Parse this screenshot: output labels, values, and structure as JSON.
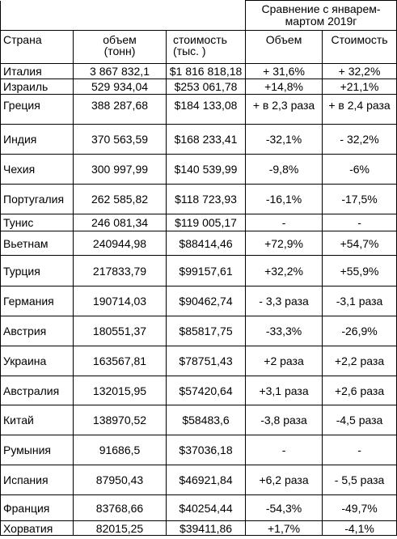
{
  "table": {
    "comparison_header": "Сравнение с январем-мартом 2019г",
    "headers": {
      "country": "Страна",
      "volume": "объем",
      "volume_unit": "(тонн)",
      "value": "стоимость",
      "value_unit": "(тыс. )",
      "volume_change": "Объем",
      "value_change": "Стоимость"
    },
    "rows": [
      {
        "country": "Италия",
        "volume": "3 867 832,1",
        "value": "$1 816 818,18",
        "volume_change": "+ 31,6%",
        "value_change": "+ 32,2%"
      },
      {
        "country": "Израиль",
        "volume": "529 934,04",
        "value": "$253 061,78",
        "volume_change": "+14,8%",
        "value_change": "+21,1%"
      },
      {
        "country": "Греция",
        "volume": "388 287,68",
        "value": "$184 133,08",
        "volume_change": "+ в 2,3 раза",
        "value_change": "+ в 2,4 раза"
      },
      {
        "country": "Индия",
        "volume": "370 563,59",
        "value": "$168 233,41",
        "volume_change": "-32,1%",
        "value_change": "- 32,2%"
      },
      {
        "country": "Чехия",
        "volume": "300 997,99",
        "value": "$140 539,99",
        "volume_change": "-9,8%",
        "value_change": "-6%"
      },
      {
        "country": "Португалия",
        "volume": "262 585,82",
        "value": "$118 723,93",
        "volume_change": "-16,1%",
        "value_change": "-17,5%"
      },
      {
        "country": "Тунис",
        "volume": "246 081,34",
        "value": "$119 005,17",
        "volume_change": "-",
        "value_change": "-"
      },
      {
        "country": "Вьетнам",
        "volume": "240944,98",
        "value": "$88414,46",
        "volume_change": "+72,9%",
        "value_change": "+54,7%"
      },
      {
        "country": "Турция",
        "volume": "217833,79",
        "value": "$99157,61",
        "volume_change": "+32,2%",
        "value_change": "+55,9%"
      },
      {
        "country": "Германия",
        "volume": "190714,03",
        "value": "$90462,74",
        "volume_change": "- 3,3 раза",
        "value_change": "-3,1 раза"
      },
      {
        "country": "Австрия",
        "volume": "180551,37",
        "value": "$85817,75",
        "volume_change": "-33,3%",
        "value_change": "-26,9%"
      },
      {
        "country": "Украина",
        "volume": "163567,81",
        "value": "$78751,43",
        "volume_change": "+2 раза",
        "value_change": "+2,2 раза"
      },
      {
        "country": "Австралия",
        "volume": "132015,95",
        "value": "$57420,64",
        "volume_change": "+3,1 раза",
        "value_change": "+2,6 раза"
      },
      {
        "country": "Китай",
        "volume": "138970,52",
        "value": "$58483,6",
        "volume_change": "-3,8 раза",
        "value_change": "-4,5 раза"
      },
      {
        "country": "Румыния",
        "volume": "91686,5",
        "value": "$37036,18",
        "volume_change": "-",
        "value_change": "-"
      },
      {
        "country": "Испания",
        "volume": "87950,43",
        "value": "$46921,84",
        "volume_change": "+6,2 раза",
        "value_change": "- 5,5 раза"
      },
      {
        "country": "Франция",
        "volume": "83768,66",
        "value": "$40254,44",
        "volume_change": "-54,3%",
        "value_change": "-49,7%"
      },
      {
        "country": "Хорватия",
        "volume": "82015,25",
        "value": "$39411,86",
        "volume_change": "+1,7%",
        "value_change": "-4,1%"
      }
    ]
  }
}
